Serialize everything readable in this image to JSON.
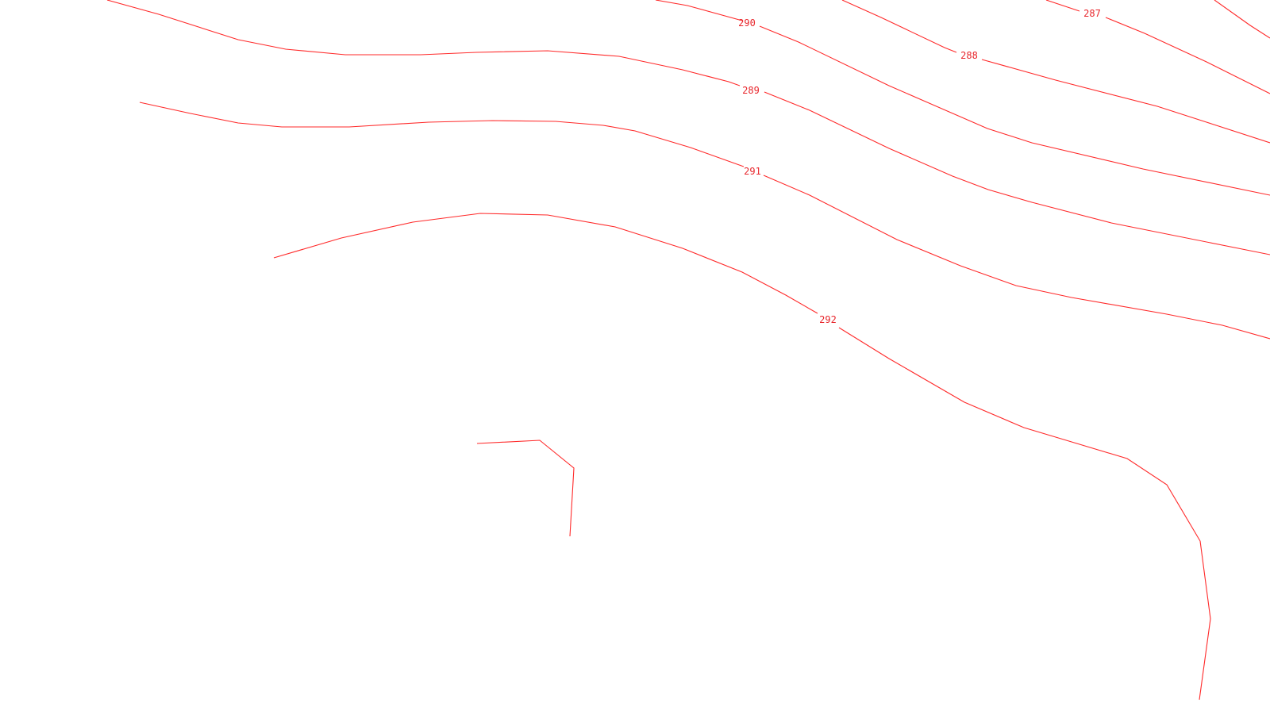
{
  "map": {
    "line_color": "#ff2a2a",
    "label_color": "#e8262c",
    "background_color": "#ffffff",
    "contours": [
      {
        "id": "287",
        "label": "287"
      },
      {
        "id": "288",
        "label": "288"
      },
      {
        "id": "289",
        "label": "289"
      },
      {
        "id": "290",
        "label": "290"
      },
      {
        "id": "291",
        "label": "291"
      },
      {
        "id": "292",
        "label": "292"
      }
    ]
  }
}
